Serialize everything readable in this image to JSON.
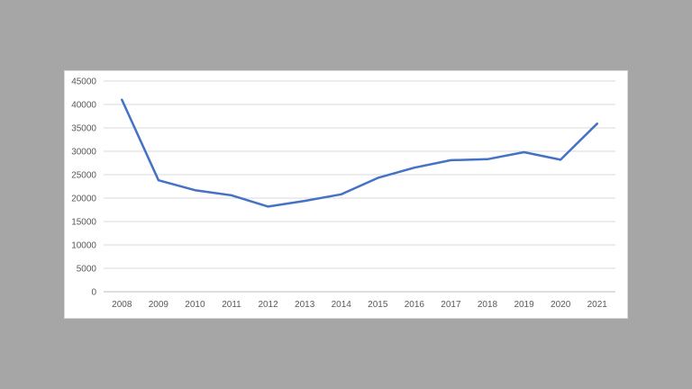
{
  "chart_data": {
    "type": "line",
    "title": "",
    "xlabel": "",
    "ylabel": "",
    "categories": [
      "2008",
      "2009",
      "2010",
      "2011",
      "2012",
      "2013",
      "2014",
      "2015",
      "2016",
      "2017",
      "2018",
      "2019",
      "2020",
      "2021"
    ],
    "series": [
      {
        "values": [
          41000,
          23800,
          21700,
          20600,
          18200,
          19400,
          20800,
          24300,
          26500,
          28100,
          28300,
          29800,
          28200,
          35900
        ],
        "color": "#4472c4"
      }
    ],
    "ylim": [
      0,
      45000
    ],
    "yticks": [
      "0",
      "5000",
      "10000",
      "15000",
      "20000",
      "25000",
      "30000",
      "35000",
      "40000",
      "45000"
    ],
    "grid": true,
    "legend": "none"
  },
  "colors": {
    "background": "#a6a6a6",
    "panel": "#ffffff",
    "gridline": "#d9d9d9",
    "axis": "#bfbfbf",
    "text": "#595959"
  }
}
